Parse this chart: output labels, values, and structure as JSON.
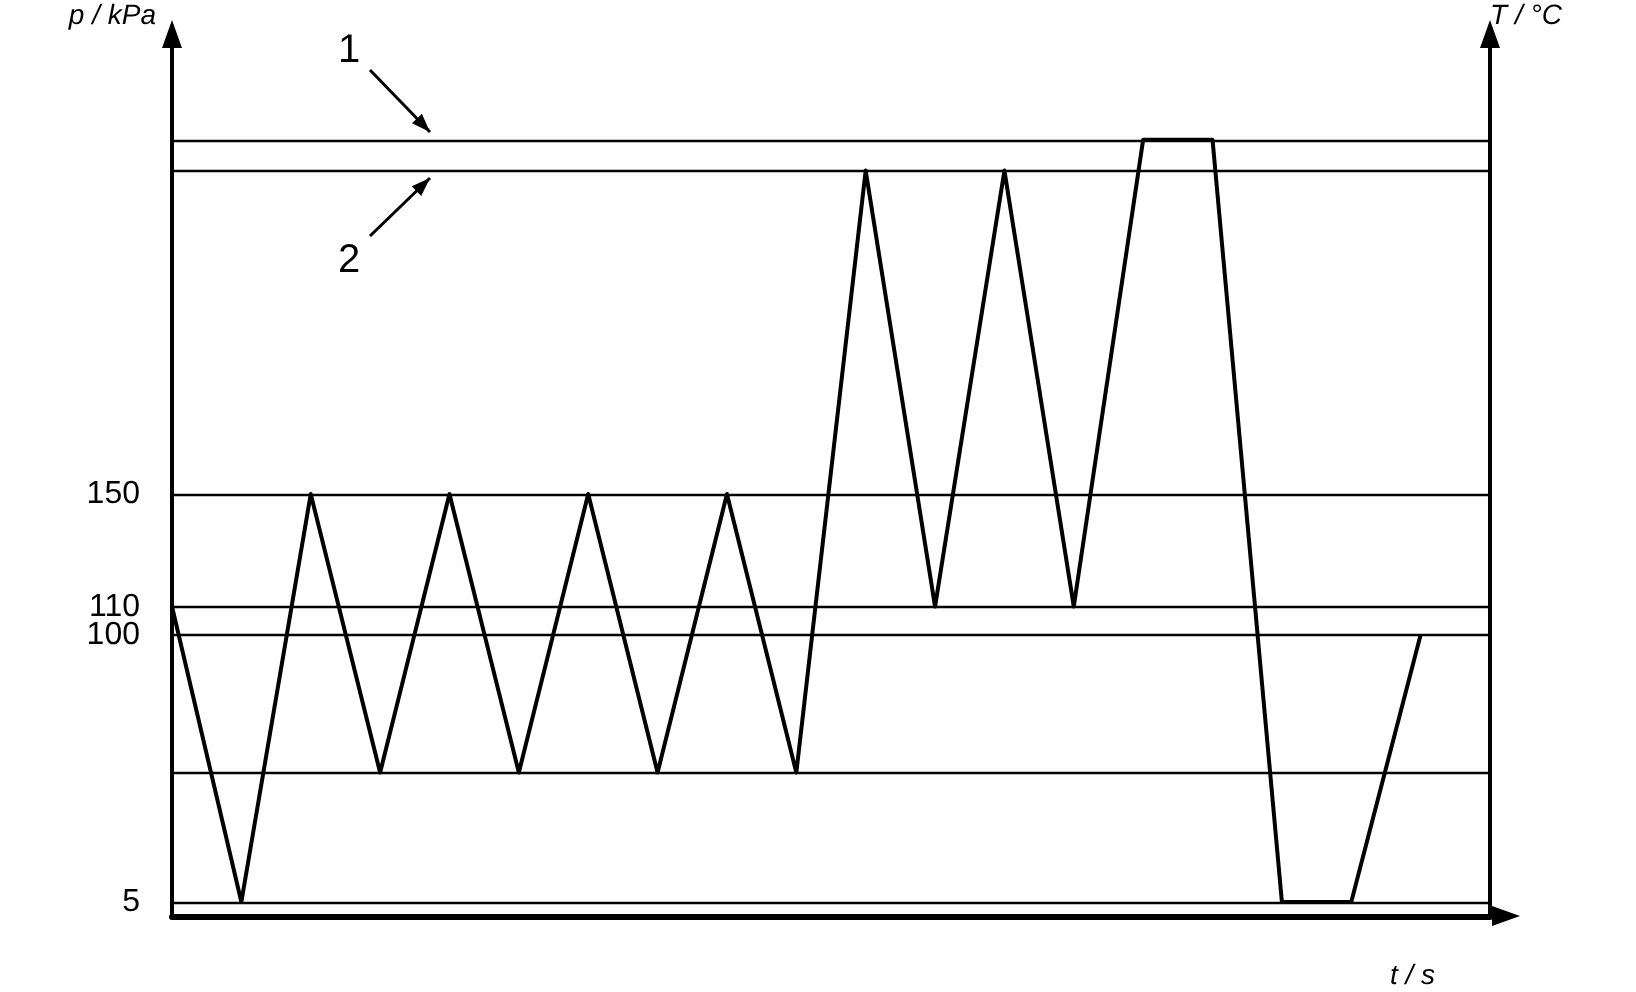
{
  "chart_data": {
    "type": "line",
    "ylabel": "p / kPa",
    "y2label": "T / °C",
    "xlabel": "t / s",
    "categories": [
      null,
      null,
      null,
      null,
      null,
      null,
      null,
      null,
      null,
      null,
      null,
      null,
      null,
      null,
      null,
      null,
      null,
      null,
      null,
      null
    ],
    "series": [
      {
        "color": "#000000",
        "values": [
          110,
          5,
          150,
          51,
          150,
          51,
          150,
          51,
          150,
          51,
          265,
          110,
          265,
          110,
          276,
          276,
          5,
          5,
          100,
          null
        ]
      }
    ],
    "ylim": [
      0,
      310
    ],
    "yticks": [
      5,
      100,
      110,
      150
    ],
    "ref_lines": [
      {
        "axis": "y",
        "value": 5
      },
      {
        "axis": "y",
        "value": 51
      },
      {
        "axis": "y",
        "value": 100
      },
      {
        "axis": "y",
        "value": 110
      },
      {
        "axis": "y",
        "value": 150
      },
      {
        "axis": "y",
        "value": 265
      },
      {
        "axis": "y",
        "value": 276
      }
    ],
    "annotations": [
      {
        "text": "1",
        "y": 276
      },
      {
        "text": "2",
        "y": 265
      }
    ],
    "grid": false,
    "marker": "none",
    "line_style": "solid"
  }
}
